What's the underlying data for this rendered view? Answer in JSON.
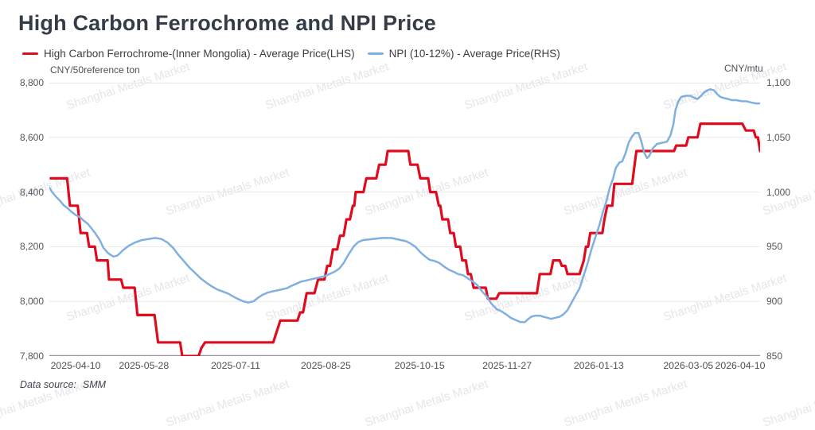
{
  "title": "High Carbon Ferrochrome and NPI Price",
  "watermark": "Shanghai Metals Market",
  "footer": {
    "label": "Data source:",
    "value": "SMM"
  },
  "legend": [
    {
      "label": "High Carbon Ferrochrome-(Inner Mongolia) - Average Price(LHS)",
      "color": "#df0c1f"
    },
    {
      "label": "NPI (10-12%) - Average Price(RHS)",
      "color": "#7fb0e0"
    }
  ],
  "chart_data": {
    "type": "line",
    "title": "High Carbon Ferrochrome and NPI Price",
    "x_axis_note": "x = fractional position along the time axis from ~2025-04 to ~2026-04 (uneven trading-day spacing)",
    "grid": true,
    "legend_position": "top-left",
    "axes": {
      "left": {
        "unit": "CNY/50reference ton",
        "min": 7800,
        "max": 8800,
        "ticks": [
          "8,800",
          "8,600",
          "8,400",
          "8,200",
          "8,000",
          "7,800"
        ]
      },
      "right": {
        "unit": "CNY/mtu",
        "min": 850,
        "max": 1100,
        "ticks": [
          "1,100",
          "1,050",
          "1,000",
          "950",
          "900",
          "850"
        ]
      },
      "x": {
        "ticks": [
          {
            "label": "2025-04-10",
            "pos": 0.037
          },
          {
            "label": "2025-05-28",
            "pos": 0.133
          },
          {
            "label": "2025-07-11",
            "pos": 0.262
          },
          {
            "label": "2025-08-25",
            "pos": 0.389
          },
          {
            "label": "2025-10-15",
            "pos": 0.521
          },
          {
            "label": "2025-11-27",
            "pos": 0.644
          },
          {
            "label": "2026-01-13",
            "pos": 0.773
          },
          {
            "label": "2026-03-05",
            "pos": 0.899
          },
          {
            "label": "2026-04-10",
            "pos": 0.972
          }
        ]
      }
    },
    "series": [
      {
        "name": "High Carbon Ferrochrome-(Inner Mongolia) - Average Price(LHS)",
        "axis": "left",
        "color": "#df0c1f",
        "points": [
          [
            0.002,
            8450
          ],
          [
            0.025,
            8450
          ],
          [
            0.029,
            8350
          ],
          [
            0.04,
            8350
          ],
          [
            0.044,
            8250
          ],
          [
            0.053,
            8250
          ],
          [
            0.056,
            8200
          ],
          [
            0.064,
            8200
          ],
          [
            0.067,
            8150
          ],
          [
            0.082,
            8150
          ],
          [
            0.084,
            8080
          ],
          [
            0.101,
            8080
          ],
          [
            0.104,
            8050
          ],
          [
            0.12,
            8050
          ],
          [
            0.124,
            7950
          ],
          [
            0.148,
            7950
          ],
          [
            0.153,
            7850
          ],
          [
            0.184,
            7850
          ],
          [
            0.187,
            7800
          ],
          [
            0.21,
            7800
          ],
          [
            0.214,
            7830
          ],
          [
            0.219,
            7850
          ],
          [
            0.315,
            7850
          ],
          [
            0.325,
            7930
          ],
          [
            0.349,
            7930
          ],
          [
            0.353,
            7960
          ],
          [
            0.357,
            7960
          ],
          [
            0.362,
            8030
          ],
          [
            0.373,
            8030
          ],
          [
            0.378,
            8080
          ],
          [
            0.387,
            8080
          ],
          [
            0.391,
            8130
          ],
          [
            0.395,
            8130
          ],
          [
            0.399,
            8190
          ],
          [
            0.405,
            8190
          ],
          [
            0.409,
            8240
          ],
          [
            0.414,
            8240
          ],
          [
            0.418,
            8300
          ],
          [
            0.423,
            8300
          ],
          [
            0.427,
            8350
          ],
          [
            0.429,
            8350
          ],
          [
            0.431,
            8400
          ],
          [
            0.442,
            8400
          ],
          [
            0.446,
            8450
          ],
          [
            0.46,
            8450
          ],
          [
            0.464,
            8500
          ],
          [
            0.473,
            8500
          ],
          [
            0.476,
            8550
          ],
          [
            0.505,
            8550
          ],
          [
            0.508,
            8500
          ],
          [
            0.518,
            8500
          ],
          [
            0.522,
            8450
          ],
          [
            0.533,
            8450
          ],
          [
            0.536,
            8400
          ],
          [
            0.544,
            8400
          ],
          [
            0.548,
            8350
          ],
          [
            0.55,
            8350
          ],
          [
            0.553,
            8300
          ],
          [
            0.561,
            8300
          ],
          [
            0.564,
            8250
          ],
          [
            0.569,
            8250
          ],
          [
            0.572,
            8200
          ],
          [
            0.578,
            8200
          ],
          [
            0.581,
            8150
          ],
          [
            0.586,
            8150
          ],
          [
            0.589,
            8100
          ],
          [
            0.593,
            8100
          ],
          [
            0.597,
            8050
          ],
          [
            0.614,
            8050
          ],
          [
            0.617,
            8010
          ],
          [
            0.629,
            8010
          ],
          [
            0.633,
            8030
          ],
          [
            0.686,
            8030
          ],
          [
            0.69,
            8100
          ],
          [
            0.705,
            8100
          ],
          [
            0.709,
            8150
          ],
          [
            0.718,
            8150
          ],
          [
            0.721,
            8130
          ],
          [
            0.726,
            8130
          ],
          [
            0.729,
            8100
          ],
          [
            0.746,
            8100
          ],
          [
            0.752,
            8150
          ],
          [
            0.755,
            8200
          ],
          [
            0.758,
            8200
          ],
          [
            0.761,
            8250
          ],
          [
            0.778,
            8250
          ],
          [
            0.781,
            8300
          ],
          [
            0.785,
            8350
          ],
          [
            0.792,
            8350
          ],
          [
            0.795,
            8430
          ],
          [
            0.82,
            8430
          ],
          [
            0.823,
            8490
          ],
          [
            0.826,
            8550
          ],
          [
            0.879,
            8550
          ],
          [
            0.882,
            8570
          ],
          [
            0.896,
            8570
          ],
          [
            0.899,
            8600
          ],
          [
            0.912,
            8600
          ],
          [
            0.916,
            8650
          ],
          [
            0.975,
            8650
          ],
          [
            0.98,
            8625
          ],
          [
            0.991,
            8625
          ],
          [
            0.994,
            8600
          ],
          [
            0.997,
            8600
          ],
          [
            1.0,
            8550
          ]
        ]
      },
      {
        "name": "NPI (10-12%) - Average Price(RHS)",
        "axis": "right",
        "color": "#7fb0e0",
        "points": [
          [
            0.0,
            1004
          ],
          [
            0.004,
            1000
          ],
          [
            0.009,
            996
          ],
          [
            0.015,
            992
          ],
          [
            0.02,
            988
          ],
          [
            0.026,
            985
          ],
          [
            0.031,
            982
          ],
          [
            0.037,
            979
          ],
          [
            0.043,
            977
          ],
          [
            0.048,
            974
          ],
          [
            0.054,
            971
          ],
          [
            0.059,
            967
          ],
          [
            0.065,
            962
          ],
          [
            0.071,
            956
          ],
          [
            0.076,
            949
          ],
          [
            0.083,
            944
          ],
          [
            0.09,
            941
          ],
          [
            0.096,
            942
          ],
          [
            0.104,
            947
          ],
          [
            0.112,
            951
          ],
          [
            0.121,
            954
          ],
          [
            0.13,
            956
          ],
          [
            0.139,
            957
          ],
          [
            0.149,
            958
          ],
          [
            0.158,
            957
          ],
          [
            0.166,
            954
          ],
          [
            0.174,
            949
          ],
          [
            0.181,
            943
          ],
          [
            0.189,
            937
          ],
          [
            0.197,
            931
          ],
          [
            0.205,
            926
          ],
          [
            0.213,
            921
          ],
          [
            0.221,
            917
          ],
          [
            0.228,
            914
          ],
          [
            0.236,
            911
          ],
          [
            0.244,
            909
          ],
          [
            0.252,
            907
          ],
          [
            0.26,
            904
          ],
          [
            0.266,
            902
          ],
          [
            0.273,
            900
          ],
          [
            0.28,
            899
          ],
          [
            0.287,
            900
          ],
          [
            0.293,
            903
          ],
          [
            0.3,
            906
          ],
          [
            0.307,
            908
          ],
          [
            0.313,
            909
          ],
          [
            0.327,
            911
          ],
          [
            0.334,
            912
          ],
          [
            0.34,
            914
          ],
          [
            0.347,
            916
          ],
          [
            0.354,
            918
          ],
          [
            0.367,
            920
          ],
          [
            0.381,
            922
          ],
          [
            0.387,
            923
          ],
          [
            0.394,
            925
          ],
          [
            0.401,
            927
          ],
          [
            0.408,
            930
          ],
          [
            0.414,
            935
          ],
          [
            0.421,
            943
          ],
          [
            0.428,
            950
          ],
          [
            0.434,
            954
          ],
          [
            0.441,
            956
          ],
          [
            0.455,
            957
          ],
          [
            0.468,
            958
          ],
          [
            0.481,
            958
          ],
          [
            0.495,
            956
          ],
          [
            0.502,
            955
          ],
          [
            0.508,
            953
          ],
          [
            0.515,
            950
          ],
          [
            0.522,
            945
          ],
          [
            0.529,
            941
          ],
          [
            0.535,
            938
          ],
          [
            0.542,
            937
          ],
          [
            0.549,
            935
          ],
          [
            0.555,
            932
          ],
          [
            0.562,
            929
          ],
          [
            0.569,
            927
          ],
          [
            0.575,
            925
          ],
          [
            0.582,
            924
          ],
          [
            0.589,
            921
          ],
          [
            0.596,
            918
          ],
          [
            0.602,
            915
          ],
          [
            0.609,
            909
          ],
          [
            0.616,
            904
          ],
          [
            0.622,
            898
          ],
          [
            0.629,
            893
          ],
          [
            0.636,
            891
          ],
          [
            0.643,
            888
          ],
          [
            0.649,
            885
          ],
          [
            0.656,
            883
          ],
          [
            0.663,
            881
          ],
          [
            0.669,
            881
          ],
          [
            0.674,
            884
          ],
          [
            0.678,
            886
          ],
          [
            0.684,
            887
          ],
          [
            0.69,
            887
          ],
          [
            0.695,
            886
          ],
          [
            0.701,
            885
          ],
          [
            0.706,
            884
          ],
          [
            0.712,
            885
          ],
          [
            0.718,
            886
          ],
          [
            0.723,
            888
          ],
          [
            0.729,
            892
          ],
          [
            0.734,
            898
          ],
          [
            0.74,
            905
          ],
          [
            0.746,
            912
          ],
          [
            0.751,
            922
          ],
          [
            0.757,
            934
          ],
          [
            0.762,
            946
          ],
          [
            0.768,
            958
          ],
          [
            0.774,
            970
          ],
          [
            0.779,
            982
          ],
          [
            0.784,
            992
          ],
          [
            0.788,
            1003
          ],
          [
            0.793,
            1012
          ],
          [
            0.797,
            1022
          ],
          [
            0.802,
            1027
          ],
          [
            0.806,
            1028
          ],
          [
            0.811,
            1036
          ],
          [
            0.815,
            1045
          ],
          [
            0.82,
            1051
          ],
          [
            0.824,
            1054
          ],
          [
            0.829,
            1054
          ],
          [
            0.833,
            1046
          ],
          [
            0.837,
            1036
          ],
          [
            0.841,
            1031
          ],
          [
            0.844,
            1033
          ],
          [
            0.849,
            1040
          ],
          [
            0.855,
            1044
          ],
          [
            0.862,
            1045
          ],
          [
            0.869,
            1046
          ],
          [
            0.874,
            1052
          ],
          [
            0.878,
            1062
          ],
          [
            0.881,
            1075
          ],
          [
            0.885,
            1083
          ],
          [
            0.889,
            1087
          ],
          [
            0.896,
            1088
          ],
          [
            0.902,
            1088
          ],
          [
            0.908,
            1086
          ],
          [
            0.912,
            1085
          ],
          [
            0.917,
            1088
          ],
          [
            0.921,
            1091
          ],
          [
            0.926,
            1093
          ],
          [
            0.93,
            1094
          ],
          [
            0.935,
            1093
          ],
          [
            0.939,
            1090
          ],
          [
            0.944,
            1087
          ],
          [
            0.949,
            1086
          ],
          [
            0.955,
            1085
          ],
          [
            0.96,
            1084
          ],
          [
            0.967,
            1084
          ],
          [
            0.974,
            1083
          ],
          [
            0.981,
            1083
          ],
          [
            0.987,
            1082
          ],
          [
            0.994,
            1081
          ],
          [
            1.0,
            1081
          ]
        ]
      }
    ]
  }
}
